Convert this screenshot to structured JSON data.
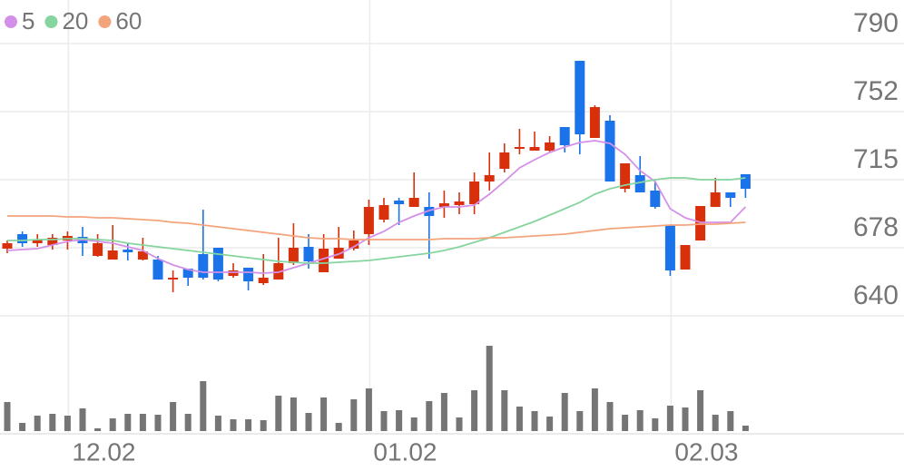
{
  "chart_data": {
    "type": "candlestick",
    "categories": [
      null,
      null,
      null,
      null,
      "12.02",
      null,
      null,
      null,
      null,
      null,
      null,
      null,
      null,
      null,
      null,
      null,
      null,
      null,
      null,
      null,
      null,
      null,
      null,
      null,
      "01.02",
      null,
      null,
      null,
      null,
      null,
      null,
      null,
      null,
      null,
      null,
      null,
      null,
      null,
      null,
      null,
      null,
      null,
      null,
      null,
      "02.03",
      null,
      null,
      null,
      null,
      null
    ],
    "open": [
      677,
      685,
      680,
      679,
      681.5,
      683.5,
      673,
      671,
      676.5,
      671,
      671,
      660,
      666,
      674,
      677.5,
      662,
      666.5,
      658,
      660,
      669,
      678,
      664,
      671.5,
      677,
      685,
      693,
      703.5,
      700,
      700,
      700,
      701,
      701.5,
      714,
      721,
      732,
      731,
      731,
      744,
      780.5,
      738,
      747.5,
      710,
      717.5,
      709,
      690,
      665.5,
      681.5,
      700,
      708,
      718
    ],
    "high": [
      681.5,
      686.5,
      685,
      685,
      686.5,
      689,
      685,
      690,
      680,
      683,
      673,
      665,
      666,
      698.5,
      677.5,
      669,
      666.5,
      674,
      683,
      691,
      685,
      685,
      689,
      687,
      704,
      705,
      705,
      719,
      708,
      709,
      708,
      719,
      730,
      735,
      743,
      741.5,
      739,
      744,
      780.5,
      756,
      750.5,
      724,
      728,
      714,
      690,
      679,
      700.5,
      716,
      708,
      718
    ],
    "low": [
      674.5,
      678,
      678,
      676.5,
      676.5,
      673,
      672.5,
      671,
      670.5,
      670.5,
      660,
      653,
      656.5,
      660,
      659,
      661,
      654,
      657,
      660,
      668,
      666,
      664,
      671.5,
      676,
      679,
      691.5,
      690,
      700,
      671.5,
      694,
      696,
      696,
      709,
      719,
      729,
      731,
      730,
      730,
      729,
      738,
      714,
      708,
      708,
      699,
      662,
      665.5,
      681.5,
      700,
      700,
      705
    ],
    "close": [
      680,
      680,
      682,
      683,
      684,
      680,
      680,
      676,
      675,
      675.5,
      660,
      661,
      661,
      661,
      660,
      665,
      659,
      661,
      669,
      677.5,
      670,
      677,
      677.5,
      681.5,
      700,
      701,
      701.5,
      705,
      695,
      702,
      703,
      714,
      717.5,
      730,
      733,
      733,
      735.5,
      734,
      740,
      755,
      714,
      724,
      708,
      700,
      665,
      679,
      700.5,
      708,
      705,
      710
    ],
    "up_color": "#d9300c",
    "down_color": "#1a73e8",
    "ylim": [
      640,
      814
    ],
    "yticks": [
      790,
      {
        "value": 752.5,
        "label": "752"
      },
      715,
      {
        "value": 677.5,
        "label": "678"
      },
      640
    ],
    "grid": true,
    "legend": "top-left",
    "series": [
      {
        "name": "5",
        "color": "#d490e8",
        "values": [
          676,
          676.5,
          677,
          679,
          681,
          682,
          681,
          680,
          678,
          676,
          671.5,
          668,
          665.5,
          664,
          664,
          664,
          664,
          663.5,
          664,
          666.5,
          669,
          671.5,
          674,
          678,
          683,
          686.5,
          691.5,
          695,
          698,
          700,
          700,
          701,
          707,
          714,
          721.5,
          726,
          730,
          733,
          735.5,
          736.5,
          735,
          729,
          720,
          714,
          699,
          694,
          691.5,
          691.5,
          691.5,
          700
        ]
      },
      {
        "name": "20",
        "color": "#86d49e",
        "values": [
          681.5,
          681.5,
          682,
          682,
          682.5,
          682.5,
          682,
          681.5,
          680,
          679,
          678,
          677,
          676,
          675,
          674,
          673,
          672,
          671,
          670,
          669.5,
          669,
          669,
          669.5,
          670,
          670.5,
          671.5,
          672.5,
          673.5,
          674.5,
          676,
          678,
          680.5,
          683,
          686,
          689,
          692,
          695.5,
          699,
          702.5,
          707,
          710,
          712,
          713.5,
          715,
          716,
          716,
          715,
          715,
          715,
          716
        ]
      },
      {
        "name": "60",
        "color": "#f4a47c",
        "values": [
          695,
          695,
          695,
          695,
          694.5,
          694.5,
          694,
          694,
          693.5,
          693,
          692.5,
          691.5,
          691,
          690,
          689,
          688,
          687,
          686,
          685,
          684,
          683,
          682.5,
          682.5,
          682,
          682,
          682,
          682,
          682,
          682,
          682.5,
          682.5,
          682.5,
          683,
          683,
          683.5,
          684,
          684.5,
          685,
          686,
          687,
          688,
          688.5,
          689,
          689.5,
          690,
          690,
          690.5,
          690.5,
          691,
          691.5
        ]
      }
    ],
    "volume": {
      "color": "#757575",
      "ylim": [
        0,
        100
      ],
      "values": [
        32,
        9,
        17,
        19,
        17,
        25,
        3,
        14,
        19,
        19,
        18,
        32,
        19,
        55,
        17,
        13,
        13,
        12,
        39,
        37,
        20,
        37,
        9,
        35,
        47,
        22,
        23,
        15,
        33,
        42,
        15,
        45,
        94,
        45,
        27,
        22,
        16,
        42,
        22,
        47,
        32,
        18,
        23,
        14,
        28,
        26,
        45,
        18,
        22,
        6
      ]
    }
  }
}
